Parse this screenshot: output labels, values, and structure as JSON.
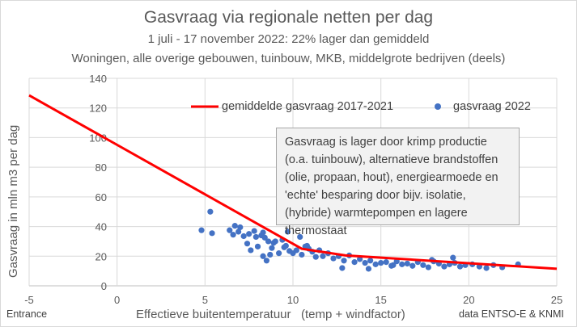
{
  "chart_data": {
    "type": "scatter",
    "title": "Gasvraag via regionale netten per dag",
    "subtitle": "1 juli - 17 november 2022: 22% lager dan gemiddeld",
    "subtitle2": "Woningen, alle overige gebouwen, tuinbouw, MKB, middelgrote bedrijven (deels)",
    "xlabel": "Effectieve buitentemperatuur   (temp + windfactor)",
    "ylabel": "Gasvraag in mln m3 per dag",
    "xlim": [
      -5,
      25
    ],
    "ylim": [
      0,
      140
    ],
    "grid": true,
    "legend_placement": "top",
    "x_ticks": [
      -5,
      0,
      5,
      10,
      15,
      20,
      25
    ],
    "y_ticks": [
      0,
      20,
      40,
      60,
      80,
      100,
      120,
      140
    ],
    "series": [
      {
        "name": "gemiddelde gasvraag 2017-2021",
        "kind": "line",
        "color": "#ff0000",
        "x": [
          -5,
          10.5,
          13,
          25
        ],
        "y": [
          128.5,
          25,
          20.5,
          11.5
        ]
      },
      {
        "name": "gasvraag 2022",
        "kind": "scatter",
        "color": "#4472c4",
        "x": [
          4.8,
          5.3,
          5.4,
          6.4,
          6.6,
          6.7,
          6.9,
          7.0,
          7.2,
          7.4,
          7.5,
          7.6,
          7.8,
          7.9,
          8.0,
          8.2,
          8.3,
          8.4,
          8.5,
          8.6,
          8.7,
          8.8,
          8.9,
          9.0,
          9.2,
          9.4,
          9.5,
          9.6,
          9.8,
          10.0,
          10.2,
          10.4,
          10.5,
          10.7,
          10.9,
          11.1,
          11.3,
          11.5,
          11.7,
          12.0,
          12.3,
          12.6,
          12.9,
          13.2,
          13.5,
          13.8,
          14.1,
          14.4,
          14.7,
          15.0,
          15.3,
          15.6,
          15.9,
          16.2,
          16.5,
          16.8,
          17.1,
          17.4,
          17.7,
          18.0,
          18.3,
          18.6,
          18.9,
          19.2,
          19.5,
          19.8,
          20.2,
          20.6,
          21.0,
          21.4,
          21.9,
          22.8,
          8.3,
          9.7,
          10.8,
          12.8,
          14.3,
          15.7,
          17.9,
          19.1
        ],
        "y": [
          37.5,
          50,
          35.5,
          37.5,
          34.5,
          40.5,
          36.5,
          39.5,
          33.5,
          28.5,
          35,
          24,
          37,
          33,
          26.5,
          34,
          36,
          32.5,
          17,
          30,
          21,
          25.5,
          29,
          30,
          22,
          31,
          26,
          27,
          23.5,
          22,
          24,
          33,
          21,
          26.5,
          25,
          23,
          19.5,
          24,
          20,
          22,
          18.5,
          20,
          17,
          20.5,
          16,
          18,
          15.5,
          17,
          14.5,
          15.5,
          16,
          13.5,
          16.5,
          14.5,
          15,
          13.5,
          16,
          14,
          12.5,
          16.5,
          15,
          13,
          14.5,
          15.5,
          13,
          14,
          14.5,
          13,
          12,
          14,
          12.5,
          14.5,
          20,
          36.5,
          27,
          12,
          11.5,
          14,
          17.5,
          19
        ]
      }
    ],
    "annotation": "Gasvraag is lager door krimp productie (o.a. tuinbouw), alternatieve brandstoffen (olie, propaan, hout),  energiearmoede en 'echte' besparing door bijv. isolatie, (hybride) warmtepompen en lagere thermostaat",
    "footer_left": "Entrance",
    "footer_right": "data ENTSO-E & KNMI"
  }
}
